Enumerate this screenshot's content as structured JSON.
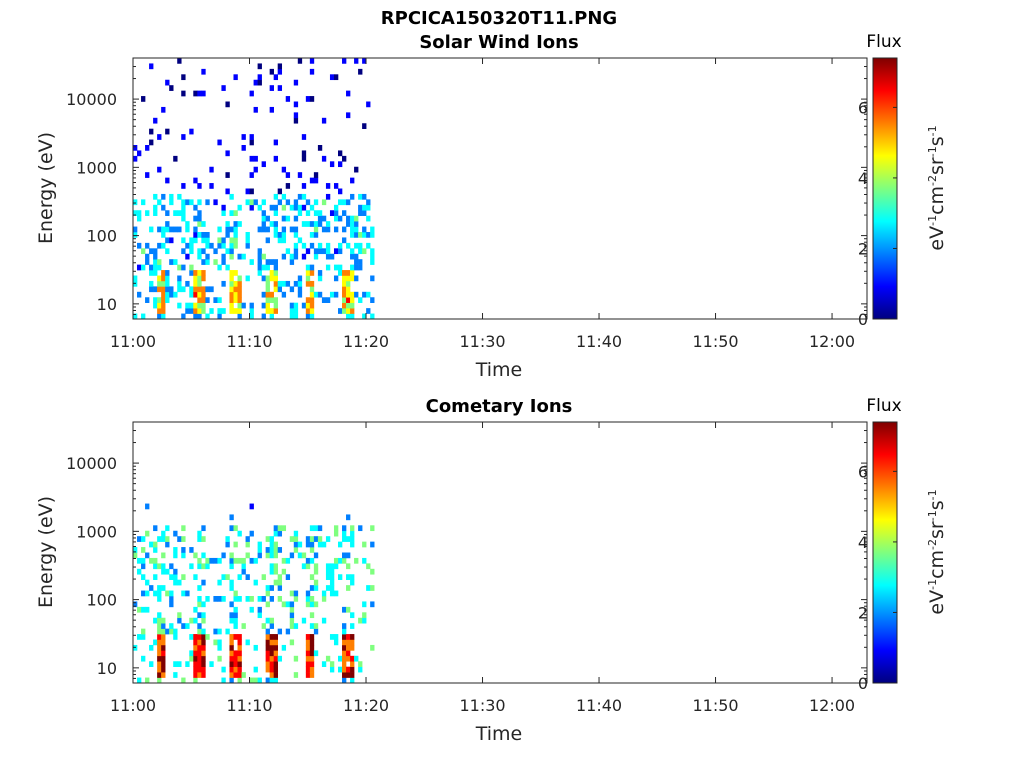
{
  "figure": {
    "title": "RPCICA150320T11.PNG"
  },
  "colormap": [
    "#00007f",
    "#0000ff",
    "#007fff",
    "#00ffff",
    "#7fff7f",
    "#ffff00",
    "#ff7f00",
    "#ff0000",
    "#7f0000"
  ],
  "chart_data": [
    {
      "type": "heatmap",
      "title": "Solar Wind Ions",
      "xlabel": "Time",
      "ylabel": "Energy (eV)",
      "x_range": [
        "11:00",
        "12:03"
      ],
      "x_ticks": [
        "11:00",
        "11:10",
        "11:20",
        "11:30",
        "11:40",
        "11:50",
        "12:00"
      ],
      "y_scale": "log",
      "y_range": [
        6,
        40000
      ],
      "y_ticks": [
        "10",
        "100",
        "1000",
        "10000"
      ],
      "data_extent_x": [
        "11:00",
        "11:20.7"
      ],
      "colorbar": {
        "label": "Flux",
        "units": "eV-1cm-2sr-1s-1",
        "range": [
          0,
          7.4
        ],
        "ticks": [
          "0",
          "2",
          "4",
          "6"
        ]
      },
      "pattern": "sparse low-flux (≈1-2) pixels across 300-40000 eV; flux ≈2-4 bands near 100-300 eV; periodic high-flux (≈4-6) bursts near 10-25 eV every ~3 min"
    },
    {
      "type": "heatmap",
      "title": "Cometary Ions",
      "xlabel": "Time",
      "ylabel": "Energy (eV)",
      "x_range": [
        "11:00",
        "12:03"
      ],
      "x_ticks": [
        "11:00",
        "11:10",
        "11:20",
        "11:30",
        "11:40",
        "11:50",
        "12:00"
      ],
      "y_scale": "log",
      "y_range": [
        6,
        40000
      ],
      "y_ticks": [
        "10",
        "100",
        "1000",
        "10000"
      ],
      "data_extent_x": [
        "11:00",
        "11:20.7"
      ],
      "colorbar": {
        "label": "Flux",
        "units": "eV-1cm-2sr-1s-1",
        "range": [
          0,
          7.4
        ],
        "ticks": [
          "0",
          "2",
          "4",
          "6"
        ]
      },
      "pattern": "flux ≈2-4 plumes 30-1000 eV; periodic high-flux (≈5-7) bursts near 8-25 eV every ~3 min; a few isolated pixels up to ~4000 eV"
    }
  ]
}
